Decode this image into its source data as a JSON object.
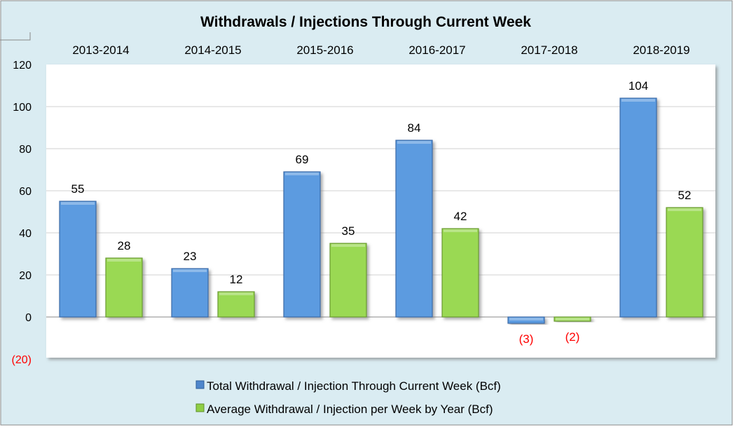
{
  "chart_data": {
    "type": "bar",
    "title": "Withdrawals / Injections Through Current Week",
    "categories": [
      "2013-2014",
      "2014-2015",
      "2015-2016",
      "2016-2017",
      "2017-2018",
      "2018-2019"
    ],
    "series": [
      {
        "name": "Total Withdrawal / Injection Through Current Week (Bcf)",
        "values": [
          55,
          23,
          69,
          84,
          -3,
          104
        ],
        "labels": [
          "55",
          "23",
          "69",
          "84",
          "(3)",
          "104"
        ],
        "color": "#5b9be0"
      },
      {
        "name": "Average Withdrawal / Injection per Week by Year (Bcf)",
        "values": [
          28,
          12,
          35,
          42,
          -2,
          52
        ],
        "labels": [
          "28",
          "12",
          "35",
          "42",
          "(2)",
          "52"
        ],
        "color": "#9ad952"
      }
    ],
    "ylim": [
      -20,
      120
    ],
    "yticks": [
      {
        "v": 120,
        "label": "120"
      },
      {
        "v": 100,
        "label": "100"
      },
      {
        "v": 80,
        "label": "80"
      },
      {
        "v": 60,
        "label": "60"
      },
      {
        "v": 40,
        "label": "40"
      },
      {
        "v": 20,
        "label": "20"
      },
      {
        "v": 0,
        "label": "0"
      },
      {
        "v": -20,
        "label": "(20)"
      }
    ],
    "negative_color": "#ff0000",
    "grid": true,
    "legend": "bottom"
  }
}
